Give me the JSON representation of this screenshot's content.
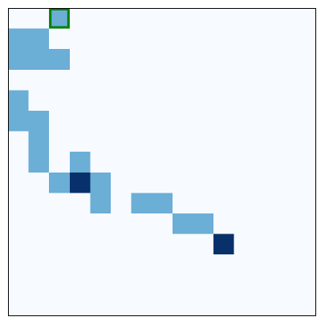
{
  "board": {
    "grid_size": [
      15,
      15
    ],
    "colors": {
      "background": "#f7fbff",
      "light": "#6baed6",
      "dark": "#08306b",
      "frame": "#000000",
      "selection": "#008000"
    },
    "cells": [
      {
        "row": 0,
        "col": 2,
        "shade": "light"
      },
      {
        "row": 1,
        "col": 0,
        "shade": "light"
      },
      {
        "row": 1,
        "col": 1,
        "shade": "light"
      },
      {
        "row": 2,
        "col": 0,
        "shade": "light"
      },
      {
        "row": 2,
        "col": 1,
        "shade": "light"
      },
      {
        "row": 2,
        "col": 2,
        "shade": "light"
      },
      {
        "row": 4,
        "col": 0,
        "shade": "light"
      },
      {
        "row": 5,
        "col": 0,
        "shade": "light"
      },
      {
        "row": 5,
        "col": 1,
        "shade": "light"
      },
      {
        "row": 6,
        "col": 1,
        "shade": "light"
      },
      {
        "row": 7,
        "col": 1,
        "shade": "light"
      },
      {
        "row": 7,
        "col": 3,
        "shade": "light"
      },
      {
        "row": 8,
        "col": 2,
        "shade": "light"
      },
      {
        "row": 8,
        "col": 3,
        "shade": "dark"
      },
      {
        "row": 8,
        "col": 4,
        "shade": "light"
      },
      {
        "row": 9,
        "col": 4,
        "shade": "light"
      },
      {
        "row": 9,
        "col": 6,
        "shade": "light"
      },
      {
        "row": 9,
        "col": 7,
        "shade": "light"
      },
      {
        "row": 10,
        "col": 8,
        "shade": "light"
      },
      {
        "row": 10,
        "col": 9,
        "shade": "light"
      },
      {
        "row": 11,
        "col": 10,
        "shade": "dark"
      }
    ],
    "selected": {
      "row": 0,
      "col": 2
    }
  }
}
